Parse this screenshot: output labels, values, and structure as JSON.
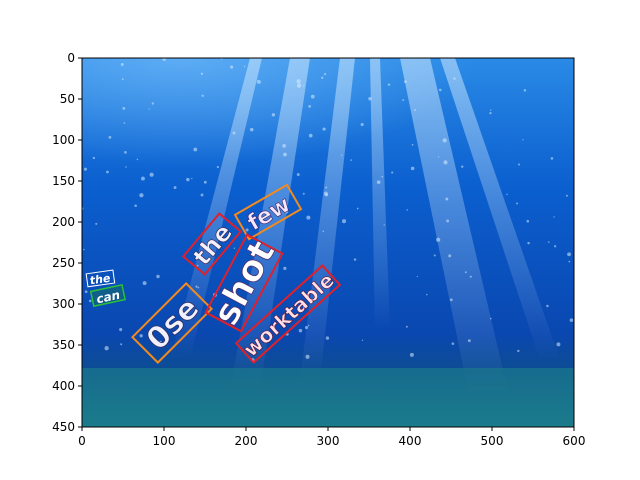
{
  "axes": {
    "x_ticks": [
      "0",
      "100",
      "200",
      "300",
      "400",
      "500",
      "600"
    ],
    "y_ticks": [
      "0",
      "50",
      "100",
      "150",
      "200",
      "250",
      "300",
      "350",
      "400",
      "450"
    ],
    "x_range": [
      0,
      600
    ],
    "y_range": [
      0,
      450
    ],
    "y_inverted": true
  },
  "colors": {
    "water_top": "#1a78d8",
    "water_mid": "#0a55c0",
    "water_bottom": "#0c4c8a",
    "floor": "#1b7d8c",
    "box_orange": "#f28a1e",
    "box_red": "#e0202a",
    "box_green": "#2bbf3a"
  },
  "words": [
    {
      "text": "the",
      "box": "white"
    },
    {
      "text": "can",
      "box": "green"
    },
    {
      "text": "0se",
      "box": "orange"
    },
    {
      "text": "the",
      "box": "red"
    },
    {
      "text": "few",
      "box": "orange"
    },
    {
      "text": "shot",
      "box": "red"
    },
    {
      "text": "worktable",
      "box": "red"
    }
  ]
}
